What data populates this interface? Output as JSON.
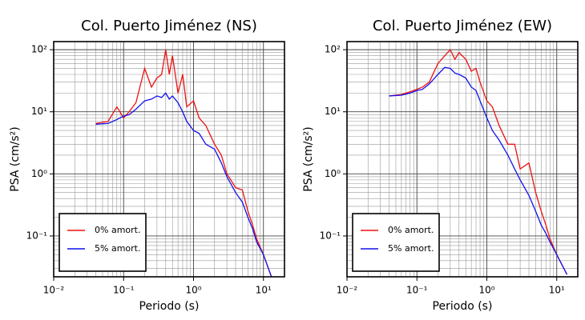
{
  "chart_data": [
    {
      "type": "line",
      "title": "Col. Puerto Jiménez (NS)",
      "x_label": "Periodo (s)",
      "y_label": "PSA (cm/s²)",
      "x": [
        0.04,
        0.06,
        0.08,
        0.1,
        0.12,
        0.15,
        0.2,
        0.25,
        0.3,
        0.35,
        0.4,
        0.45,
        0.5,
        0.6,
        0.7,
        0.8,
        1.0,
        1.2,
        1.5,
        2,
        2.5,
        3,
        4,
        5,
        6,
        7,
        8,
        10,
        13
      ],
      "series": [
        {
          "name": "0% amort.",
          "color": "#ee1111",
          "values": [
            6.5,
            7,
            12,
            8,
            10,
            14,
            50,
            25,
            35,
            40,
            100,
            40,
            80,
            20,
            40,
            12,
            15,
            8,
            6,
            3,
            2,
            1,
            0.6,
            0.55,
            0.25,
            0.15,
            0.09,
            0.05,
            0.022
          ]
        },
        {
          "name": "5% amort.",
          "color": "#1111ee",
          "values": [
            6.3,
            6.5,
            7.5,
            8.5,
            9,
            11,
            15,
            16,
            18,
            17,
            20,
            16,
            18,
            14,
            10,
            7,
            5,
            4.5,
            3,
            2.5,
            1.5,
            0.9,
            0.5,
            0.35,
            0.2,
            0.13,
            0.08,
            0.05,
            0.022
          ]
        }
      ],
      "xlim": [
        0.01,
        20
      ],
      "ylim": [
        0.022,
        135
      ],
      "log_x": true,
      "log_y": true,
      "grid": true,
      "legend": "lower left",
      "xticks": [
        {
          "value": 0.01,
          "label": "10⁻²"
        },
        {
          "value": 0.1,
          "label": "10⁻¹"
        },
        {
          "value": 1,
          "label": "10⁰"
        },
        {
          "value": 10,
          "label": "10¹"
        }
      ],
      "yticks": [
        {
          "value": 0.1,
          "label": "10⁻¹"
        },
        {
          "value": 1,
          "label": "10⁰"
        },
        {
          "value": 10,
          "label": "10¹"
        },
        {
          "value": 100,
          "label": "10²"
        }
      ]
    },
    {
      "type": "line",
      "title": "Col. Puerto Jiménez (EW)",
      "x_label": "Periodo (s)",
      "y_label": "PSA (cm/s²)",
      "x": [
        0.04,
        0.06,
        0.08,
        0.1,
        0.12,
        0.15,
        0.2,
        0.25,
        0.3,
        0.35,
        0.4,
        0.5,
        0.6,
        0.7,
        0.8,
        1.0,
        1.2,
        1.5,
        2,
        2.5,
        3,
        4,
        5,
        6,
        7,
        8,
        10,
        14
      ],
      "series": [
        {
          "name": "0% amort.",
          "color": "#ee1111",
          "values": [
            18,
            19,
            21,
            23,
            25,
            30,
            60,
            80,
            100,
            70,
            90,
            70,
            45,
            50,
            30,
            15,
            12,
            6,
            3,
            3,
            1.2,
            1.5,
            0.5,
            0.25,
            0.15,
            0.09,
            0.05,
            0.024
          ]
        },
        {
          "name": "5% amort.",
          "color": "#1111ee",
          "values": [
            18,
            18.5,
            20,
            22,
            23,
            28,
            40,
            52,
            50,
            42,
            40,
            35,
            25,
            22,
            15,
            8,
            5,
            3.5,
            2,
            1.2,
            0.8,
            0.45,
            0.25,
            0.15,
            0.11,
            0.08,
            0.05,
            0.024
          ]
        }
      ],
      "xlim": [
        0.01,
        20
      ],
      "ylim": [
        0.022,
        135
      ],
      "log_x": true,
      "log_y": true,
      "grid": true,
      "legend": "lower left",
      "xticks": [
        {
          "value": 0.01,
          "label": "10⁻²"
        },
        {
          "value": 0.1,
          "label": "10⁻¹"
        },
        {
          "value": 1,
          "label": "10⁰"
        },
        {
          "value": 10,
          "label": "10¹"
        }
      ],
      "yticks": [
        {
          "value": 0.1,
          "label": "10⁻¹"
        },
        {
          "value": 1,
          "label": "10⁰"
        },
        {
          "value": 10,
          "label": "10¹"
        },
        {
          "value": 100,
          "label": "10²"
        }
      ]
    }
  ]
}
